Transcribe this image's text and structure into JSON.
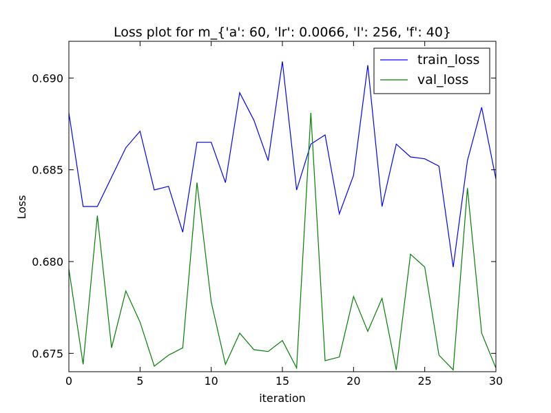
{
  "chart_data": {
    "type": "line",
    "title": "Loss plot for m_{'a': 60, 'lr': 0.0066, 'l': 256, 'f': 40}",
    "xlabel": "iteration",
    "ylabel": "Loss",
    "xlim": [
      0,
      30
    ],
    "ylim": [
      0.674,
      0.692
    ],
    "xticks": [
      0,
      5,
      10,
      15,
      20,
      25,
      30
    ],
    "xtick_labels": [
      "0",
      "5",
      "10",
      "15",
      "20",
      "25",
      "30"
    ],
    "yticks": [
      0.675,
      0.68,
      0.685,
      0.69
    ],
    "ytick_labels": [
      "0.675",
      "0.680",
      "0.685",
      "0.690"
    ],
    "grid": false,
    "legend_position": "top-right",
    "x": [
      0,
      1,
      2,
      3,
      4,
      5,
      6,
      7,
      8,
      9,
      10,
      11,
      12,
      13,
      14,
      15,
      16,
      17,
      18,
      19,
      20,
      21,
      22,
      23,
      24,
      25,
      26,
      27,
      28,
      29,
      30
    ],
    "series": [
      {
        "name": "train_loss",
        "color": "#0000ff",
        "values": [
          0.6881,
          0.683,
          0.683,
          0.6846,
          0.6862,
          0.6871,
          0.6839,
          0.6841,
          0.6816,
          0.6865,
          0.6865,
          0.6843,
          0.6892,
          0.6877,
          0.6855,
          0.6909,
          0.6839,
          0.6864,
          0.6869,
          0.6826,
          0.6847,
          0.6907,
          0.683,
          0.6864,
          0.6857,
          0.6856,
          0.6852,
          0.6797,
          0.6855,
          0.6884,
          0.6845
        ]
      },
      {
        "name": "val_loss",
        "color": "#008000",
        "values": [
          0.6796,
          0.6744,
          0.6825,
          0.6753,
          0.6784,
          0.6767,
          0.6743,
          0.6749,
          0.6753,
          0.6843,
          0.6778,
          0.6744,
          0.6761,
          0.6752,
          0.6751,
          0.6757,
          0.6742,
          0.6881,
          0.6746,
          0.6748,
          0.6781,
          0.6762,
          0.678,
          0.6741,
          0.6804,
          0.6797,
          0.6749,
          0.6741,
          0.684,
          0.6761,
          0.6742
        ]
      }
    ]
  }
}
